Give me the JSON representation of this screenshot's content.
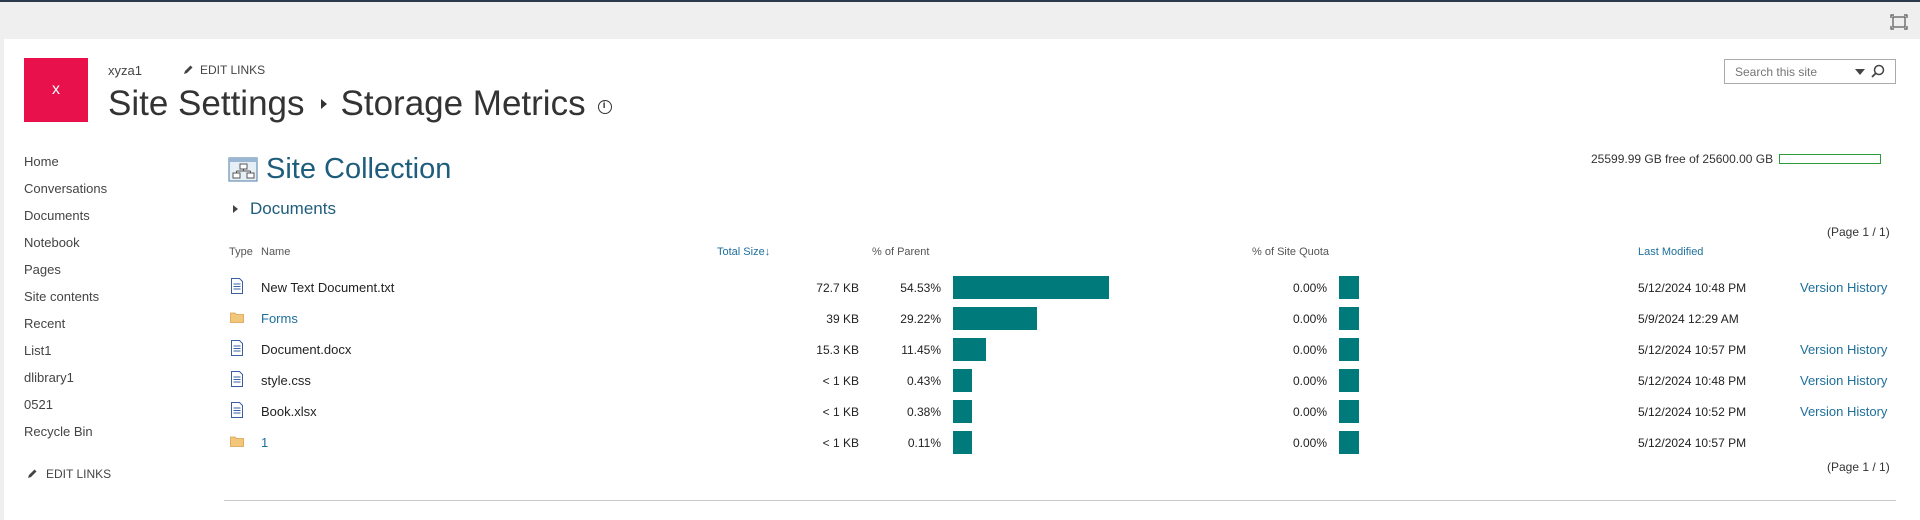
{
  "site": {
    "logo_letter": "x",
    "name": "xyza1",
    "edit_links": "EDIT LINKS"
  },
  "title": {
    "parent": "Site Settings",
    "current": "Storage Metrics"
  },
  "search": {
    "placeholder": "Search this site"
  },
  "nav": {
    "items": [
      "Home",
      "Conversations",
      "Documents",
      "Notebook",
      "Pages",
      "Site contents",
      "Recent",
      "List1",
      "dlibrary1",
      "0521",
      "Recycle Bin"
    ],
    "edit_links": "EDIT LINKS"
  },
  "quota": {
    "text": "25599.99 GB free of 25600.00 GB",
    "used_fraction": 4e-07,
    "bar_color": "#2a9d3b"
  },
  "section": {
    "title": "Site Collection",
    "path": "Documents"
  },
  "pager": {
    "top": "(Page 1 / 1)",
    "bottom": "(Page 1 / 1)"
  },
  "columns": {
    "type": "Type",
    "name": "Name",
    "total_size": "Total Size",
    "pct_parent": "% of Parent",
    "pct_quota": "% of Site Quota",
    "last_modified": "Last Modified"
  },
  "rows": [
    {
      "type": "document-icon",
      "name": "New Text Document.txt",
      "is_folder": false,
      "size": "72.7 KB",
      "pct_parent": "54.53%",
      "pct_parent_value": 54.53,
      "pct_quota": "0.00%",
      "modified": "5/12/2024 10:48 PM",
      "version_history": "Version History"
    },
    {
      "type": "folder-icon",
      "name": "Forms",
      "is_folder": true,
      "size": "39 KB",
      "pct_parent": "29.22%",
      "pct_parent_value": 29.22,
      "pct_quota": "0.00%",
      "modified": "5/9/2024 12:29 AM",
      "version_history": ""
    },
    {
      "type": "document-icon",
      "name": "Document.docx",
      "is_folder": false,
      "size": "15.3 KB",
      "pct_parent": "11.45%",
      "pct_parent_value": 11.45,
      "pct_quota": "0.00%",
      "modified": "5/12/2024 10:57 PM",
      "version_history": "Version History"
    },
    {
      "type": "document-icon",
      "name": "style.css",
      "is_folder": false,
      "size": "< 1 KB",
      "pct_parent": "0.43%",
      "pct_parent_value": 0.43,
      "pct_quota": "0.00%",
      "modified": "5/12/2024 10:48 PM",
      "version_history": "Version History"
    },
    {
      "type": "document-icon",
      "name": "Book.xlsx",
      "is_folder": false,
      "size": "< 1 KB",
      "pct_parent": "0.38%",
      "pct_parent_value": 0.38,
      "pct_quota": "0.00%",
      "modified": "5/12/2024 10:52 PM",
      "version_history": "Version History"
    },
    {
      "type": "folder-icon",
      "name": "1",
      "is_folder": true,
      "size": "< 1 KB",
      "pct_parent": "0.11%",
      "pct_parent_value": 0.11,
      "pct_quota": "0.00%",
      "modified": "5/12/2024 10:57 PM",
      "version_history": ""
    }
  ],
  "colors": {
    "accent": "#1e5d7c",
    "bar": "#007a7a",
    "logo": "#e8114b"
  }
}
